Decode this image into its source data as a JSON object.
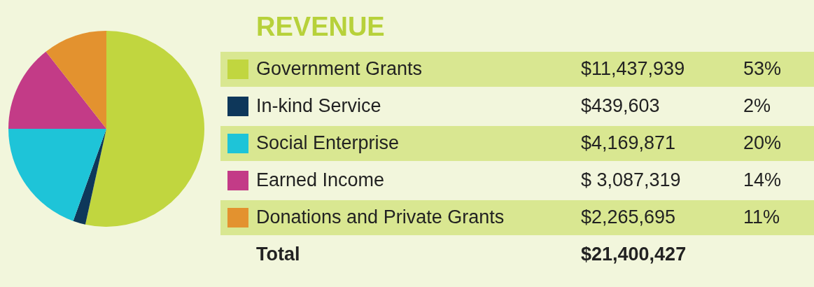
{
  "chart_data": {
    "type": "pie",
    "title": "REVENUE",
    "categories": [
      "Government Grants",
      "In-kind Service",
      "Social Enterprise",
      "Earned Income",
      "Donations and Private Grants"
    ],
    "values": [
      11437939,
      439603,
      4169871,
      3087319,
      2265695
    ],
    "colors": [
      "#c1d63f",
      "#0e375a",
      "#1ec4d8",
      "#c33b87",
      "#e3922f"
    ],
    "value_labels": [
      "$11,437,939",
      "$439,603",
      "$4,169,871",
      "$ 3,087,319",
      "$2,265,695"
    ],
    "annotations": [
      "53%",
      "2%",
      "20%",
      "14%",
      "11%",
      "Total"
    ],
    "totals": [
      "$21,400,427"
    ],
    "legend": "right"
  }
}
